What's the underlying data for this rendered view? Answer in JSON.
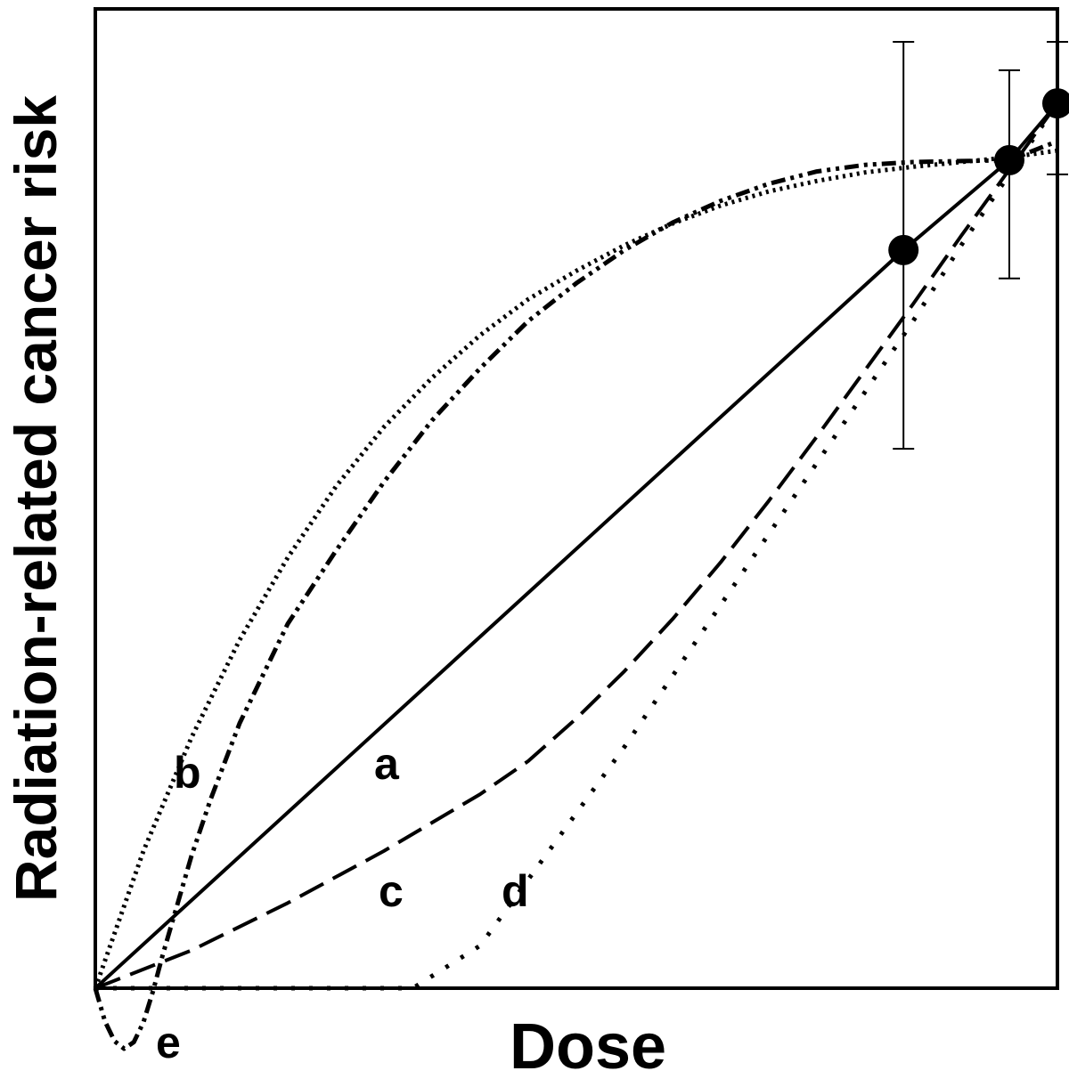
{
  "chart_data": {
    "type": "line",
    "title": "",
    "xlabel": "Dose",
    "ylabel": "Radiation-related cancer risk",
    "xlim": [
      0,
      100
    ],
    "ylim": [
      -7,
      100
    ],
    "grid": false,
    "legend": "none",
    "observations": [
      {
        "x": 84,
        "y": 78,
        "yerr_low": 57,
        "yerr_high": 100
      },
      {
        "x": 95,
        "y": 87.5,
        "yerr_low": 75,
        "yerr_high": 97
      },
      {
        "x": 100,
        "y": 93.5,
        "yerr_low": 86,
        "yerr_high": 100
      }
    ],
    "series": [
      {
        "name": "a",
        "style": "solid",
        "x": [
          0,
          84,
          95,
          100
        ],
        "y": [
          0,
          78,
          87.5,
          93.5
        ]
      },
      {
        "name": "b",
        "style": "dotted-fine",
        "x": [
          0,
          5,
          10,
          15,
          20,
          25,
          30,
          35,
          40,
          45,
          50,
          55,
          60,
          65,
          70,
          75,
          80,
          85,
          90,
          95,
          100
        ],
        "y": [
          0,
          14.5,
          26.5,
          36.8,
          45.5,
          53,
          59.3,
          64.5,
          69,
          72.8,
          75.8,
          78.5,
          80.8,
          82.7,
          84.2,
          85.3,
          86.2,
          86.8,
          87.3,
          87.8,
          88.5
        ]
      },
      {
        "name": "c",
        "style": "dashed",
        "x": [
          0,
          10,
          20,
          30,
          40,
          45,
          50,
          55,
          60,
          65,
          70,
          75,
          80,
          85,
          90,
          95,
          100
        ],
        "y": [
          0,
          4,
          9,
          14.5,
          20.5,
          24,
          28.5,
          33.5,
          39,
          45,
          51.5,
          58.3,
          65.3,
          72.3,
          79.5,
          86.5,
          93.5
        ]
      },
      {
        "name": "d",
        "style": "dotted-coarse",
        "x": [
          0,
          33,
          40,
          45,
          50,
          55,
          60,
          65,
          70,
          75,
          80,
          85,
          90,
          95,
          100
        ],
        "y": [
          0,
          0,
          4.5,
          11.5,
          18.5,
          25.5,
          33,
          40.5,
          48,
          55.5,
          63,
          70.5,
          78.5,
          86,
          93.5
        ]
      },
      {
        "name": "e",
        "style": "dash-dot-dot",
        "x": [
          0,
          1,
          2,
          3,
          4,
          5,
          6,
          7,
          8,
          10,
          12,
          15,
          20,
          25,
          30,
          35,
          40,
          45,
          50,
          55,
          60,
          65,
          70,
          75,
          80,
          85,
          90,
          95,
          100
        ],
        "y": [
          0,
          -3.5,
          -5.6,
          -6.4,
          -5.7,
          -3.6,
          -0.3,
          3.5,
          7,
          14,
          20,
          28,
          38.5,
          46.2,
          53.5,
          60,
          65.5,
          70.5,
          74.5,
          78,
          80.9,
          83.2,
          85,
          86.3,
          87,
          87.3,
          87.4,
          87.5,
          89.5
        ]
      }
    ],
    "curve_labels": [
      "a",
      "b",
      "c",
      "d",
      "e"
    ]
  }
}
